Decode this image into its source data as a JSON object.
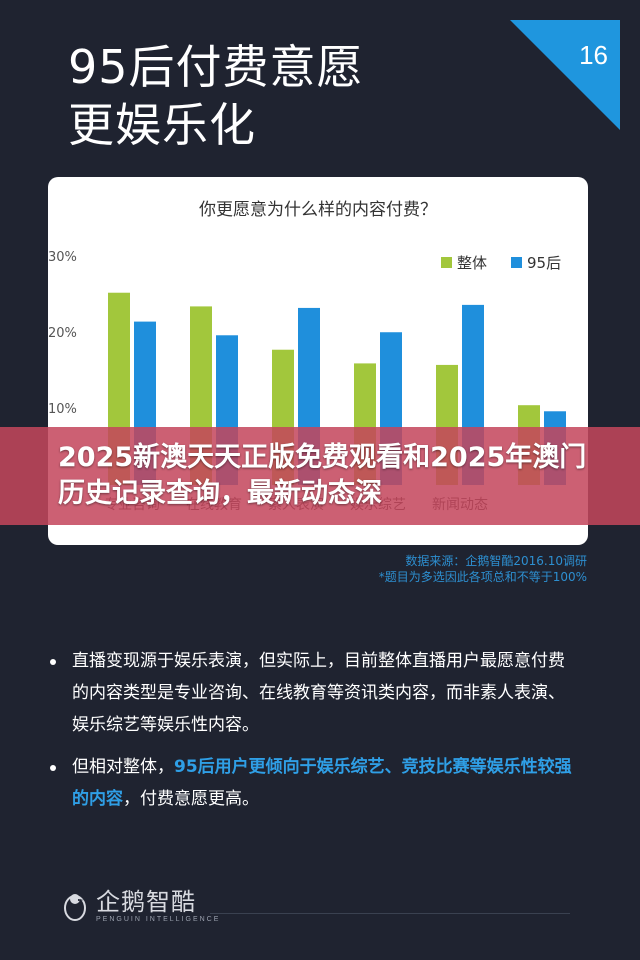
{
  "page": {
    "title": "95后付费意愿\n更娱乐化",
    "page_number": "16",
    "accent_color": "#1f96de",
    "background_color": "#1f2330"
  },
  "chart_data": {
    "type": "bar",
    "title": "你更愿意为什么样的内容付费？",
    "categories": [
      "专业咨询",
      "在线教育",
      "素人表演",
      "娱乐综艺",
      "新闻动态",
      ""
    ],
    "series": [
      {
        "name": "整体",
        "color": "#a2c73c",
        "values": [
          25.3,
          23.5,
          17.8,
          16.0,
          15.8,
          10.5
        ]
      },
      {
        "name": "95后",
        "color": "#1f8fdc",
        "values": [
          21.5,
          19.7,
          23.3,
          20.1,
          23.7,
          9.7
        ]
      }
    ],
    "y_ticks": [
      "30%",
      "20%",
      "10%"
    ],
    "ylim": [
      0,
      30
    ],
    "grid": false,
    "legend_position": "top-right"
  },
  "source": {
    "line1": "数据来源：企鹅智酷2016.10调研",
    "line2": "*题目为多选因此各项总和不等于100%"
  },
  "bullets": [
    {
      "text": "直播变现源于娱乐表演，但实际上，目前整体直播用户最愿意付费的内容类型是专业咨询、在线教育等资讯类内容，而非素人表演、娱乐综艺等娱乐性内容。"
    },
    {
      "pre": "但相对整体，",
      "highlight": "95后用户更倾向于娱乐综艺、竞技比赛等娱乐性较强的内容",
      "post": "，付费意愿更高。"
    }
  ],
  "banner": {
    "text": "2025新澳天天正版免费观看和2025年澳门历史记录查询，最新动态深",
    "color": "#c4465c"
  },
  "footer": {
    "logo_cn": "企鹅智酷",
    "logo_en": "PENGUIN INTELLIGENCE",
    "logo_icon": "penguin-icon"
  }
}
